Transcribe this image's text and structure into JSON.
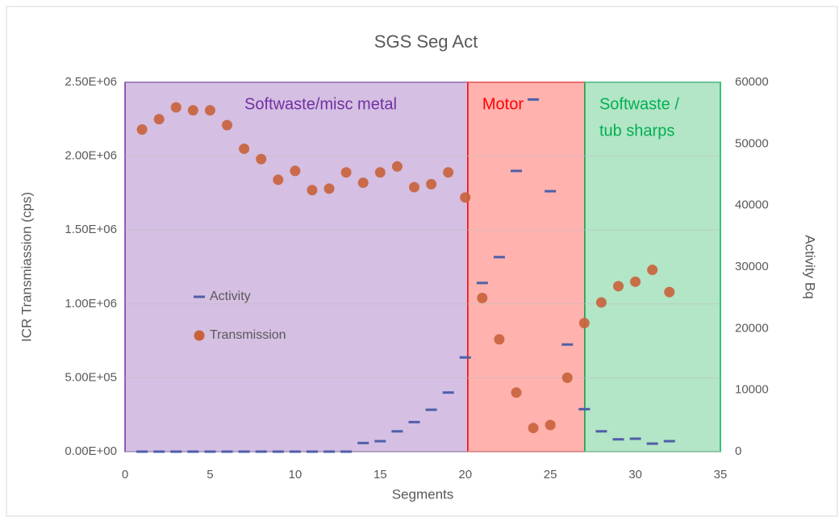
{
  "chart_data": {
    "type": "scatter",
    "title": "SGS  Seg Act",
    "x_label": "Segments",
    "y_label": "ICR Transmiassion (cps)",
    "y2_label": "Activity Bq",
    "xlim": [
      0,
      35
    ],
    "xticks": [
      0,
      5,
      10,
      15,
      20,
      25,
      30,
      35
    ],
    "ylim": [
      0,
      2500000
    ],
    "yticks": [
      {
        "value": 0,
        "label": "0.00E+00"
      },
      {
        "value": 500000,
        "label": "5.00E+05"
      },
      {
        "value": 1000000,
        "label": "1.00E+06"
      },
      {
        "value": 1500000,
        "label": "1.50E+06"
      },
      {
        "value": 2000000,
        "label": "2.00E+06"
      },
      {
        "value": 2500000,
        "label": "2.50E+06"
      }
    ],
    "y2lim": [
      0,
      60000
    ],
    "y2ticks": [
      0,
      10000,
      20000,
      30000,
      40000,
      50000,
      60000
    ],
    "grid": true,
    "regions": [
      {
        "lines": [
          "Softwaste/misc metal"
        ],
        "from": 0,
        "to": 20.15,
        "color": "#d5bfe3",
        "border": "#7030a0",
        "text_color": "#7030a0"
      },
      {
        "lines": [
          "Motor"
        ],
        "from": 20.15,
        "to": 27.03,
        "color": "#ffb2ae",
        "border": "#ff0000",
        "text_color": "#ff0000"
      },
      {
        "lines": [
          "Softwaste /",
          "tub sharps"
        ],
        "from": 27.03,
        "to": 35,
        "color": "#b3e5c7",
        "border": "#00b050",
        "text_color": "#00b050"
      }
    ],
    "series": [
      {
        "name": "Activity",
        "color": "#4f5fa8",
        "marker": "dash",
        "axis": "y2",
        "x": [
          1,
          2,
          3,
          4,
          5,
          6,
          7,
          8,
          9,
          10,
          11,
          12,
          13,
          14,
          15,
          16,
          17,
          18,
          19,
          20,
          21,
          22,
          23,
          24,
          25,
          26,
          27,
          28,
          29,
          30,
          31,
          32
        ],
        "values": [
          0,
          0,
          0,
          0,
          0,
          0,
          0,
          0,
          0,
          0,
          0,
          0,
          0,
          1400,
          1700,
          3300,
          4800,
          6800,
          9600,
          15300,
          27400,
          31600,
          45600,
          57200,
          42300,
          17400,
          6900,
          3300,
          2000,
          2100,
          1300,
          1700
        ]
      },
      {
        "name": "Transmission",
        "color": "#c8623a",
        "marker": "circle",
        "axis": "y",
        "x": [
          1,
          2,
          3,
          4,
          5,
          6,
          7,
          8,
          9,
          10,
          11,
          12,
          13,
          14,
          15,
          16,
          17,
          18,
          19,
          20,
          21,
          22,
          23,
          24,
          25,
          26,
          27,
          28,
          29,
          30,
          31,
          32
        ],
        "values": [
          2180000,
          2250000,
          2330000,
          2310000,
          2310000,
          2210000,
          2050000,
          1980000,
          1840000,
          1900000,
          1770000,
          1780000,
          1890000,
          1820000,
          1890000,
          1930000,
          1790000,
          1810000,
          1890000,
          1720000,
          1040000,
          760000,
          400000,
          160000,
          180000,
          500000,
          870000,
          1010000,
          1120000,
          1150000,
          1230000,
          1080000
        ]
      }
    ]
  }
}
